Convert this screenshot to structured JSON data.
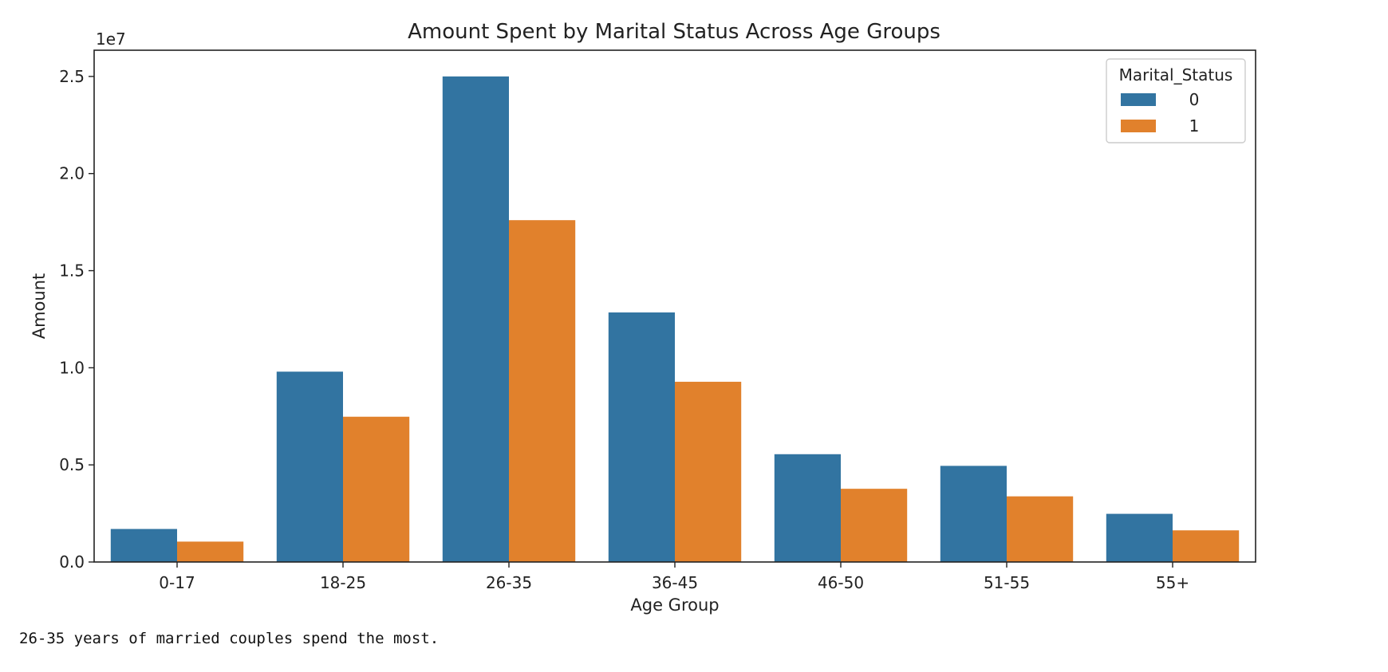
{
  "chart_data": {
    "type": "bar",
    "title": "Amount Spent by Marital Status Across Age Groups",
    "xlabel": "Age Group",
    "ylabel": "Amount",
    "y_offset_label": "1e7",
    "categories": [
      "0-17",
      "18-25",
      "26-35",
      "36-45",
      "46-50",
      "51-55",
      "55+"
    ],
    "series": [
      {
        "name": "0",
        "color": "#3274a1",
        "values": [
          1700000,
          9800000,
          25000000,
          12850000,
          5550000,
          4950000,
          2480000
        ]
      },
      {
        "name": "1",
        "color": "#e1812c",
        "values": [
          1050000,
          7480000,
          17600000,
          9280000,
          3770000,
          3380000,
          1630000
        ]
      }
    ],
    "ylim": [
      0,
      26350000
    ],
    "yticks": [
      0,
      5000000,
      10000000,
      15000000,
      20000000,
      25000000
    ],
    "ytick_labels": [
      "0.0",
      "0.5",
      "1.0",
      "1.5",
      "2.0",
      "2.5"
    ],
    "legend": {
      "title": "Marital_Status",
      "position": "top-right"
    },
    "grid": false
  },
  "note": "26-35 years of married couples spend the most."
}
